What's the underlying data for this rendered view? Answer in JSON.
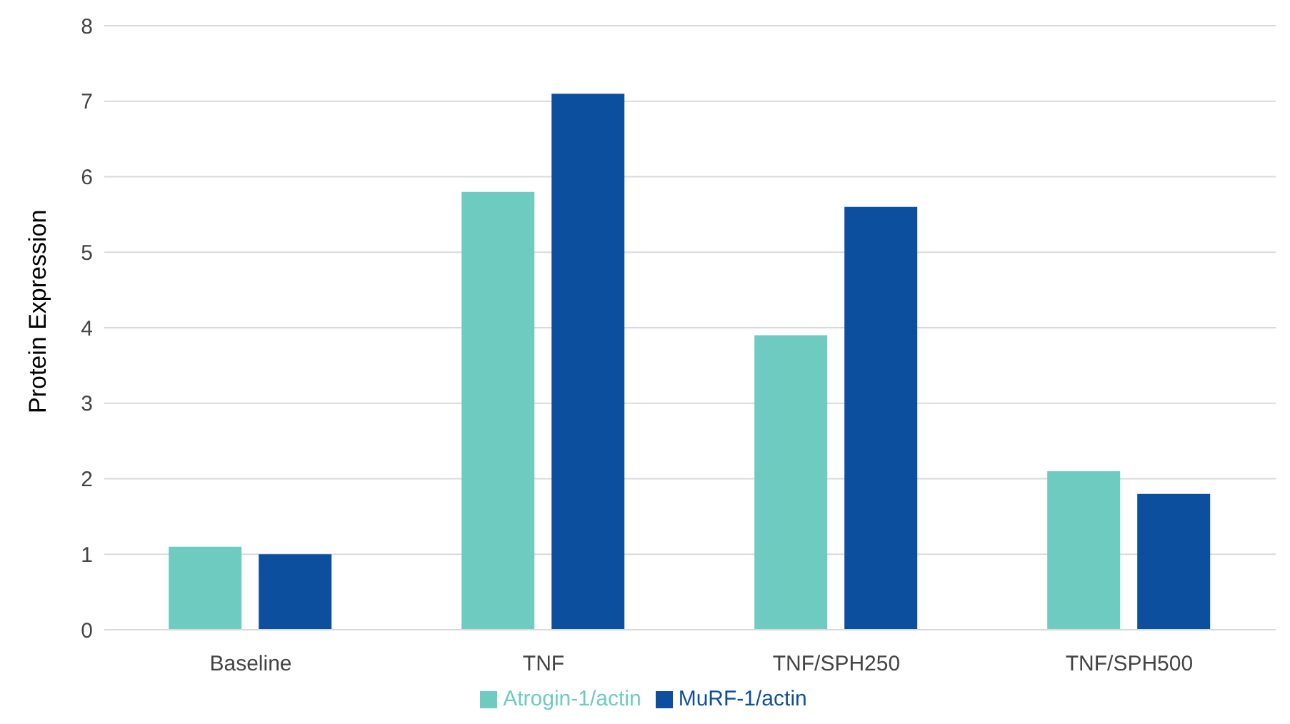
{
  "chart_data": {
    "type": "bar",
    "ylabel": "Protein Expression",
    "categories": [
      "Baseline",
      "TNF",
      "TNF/SPH250",
      "TNF/SPH500"
    ],
    "series": [
      {
        "name": "Atrogin-1/actin",
        "color": "#6dcbc0",
        "values": [
          1.1,
          5.8,
          3.9,
          2.1
        ]
      },
      {
        "name": "MuRF-1/actin",
        "color": "#0c4f9e",
        "values": [
          1.0,
          7.1,
          5.6,
          1.8
        ]
      }
    ],
    "ylim": [
      0,
      8
    ],
    "yticks": [
      0,
      1,
      2,
      3,
      4,
      5,
      6,
      7,
      8
    ],
    "grid": "y",
    "legend": "bottom"
  }
}
